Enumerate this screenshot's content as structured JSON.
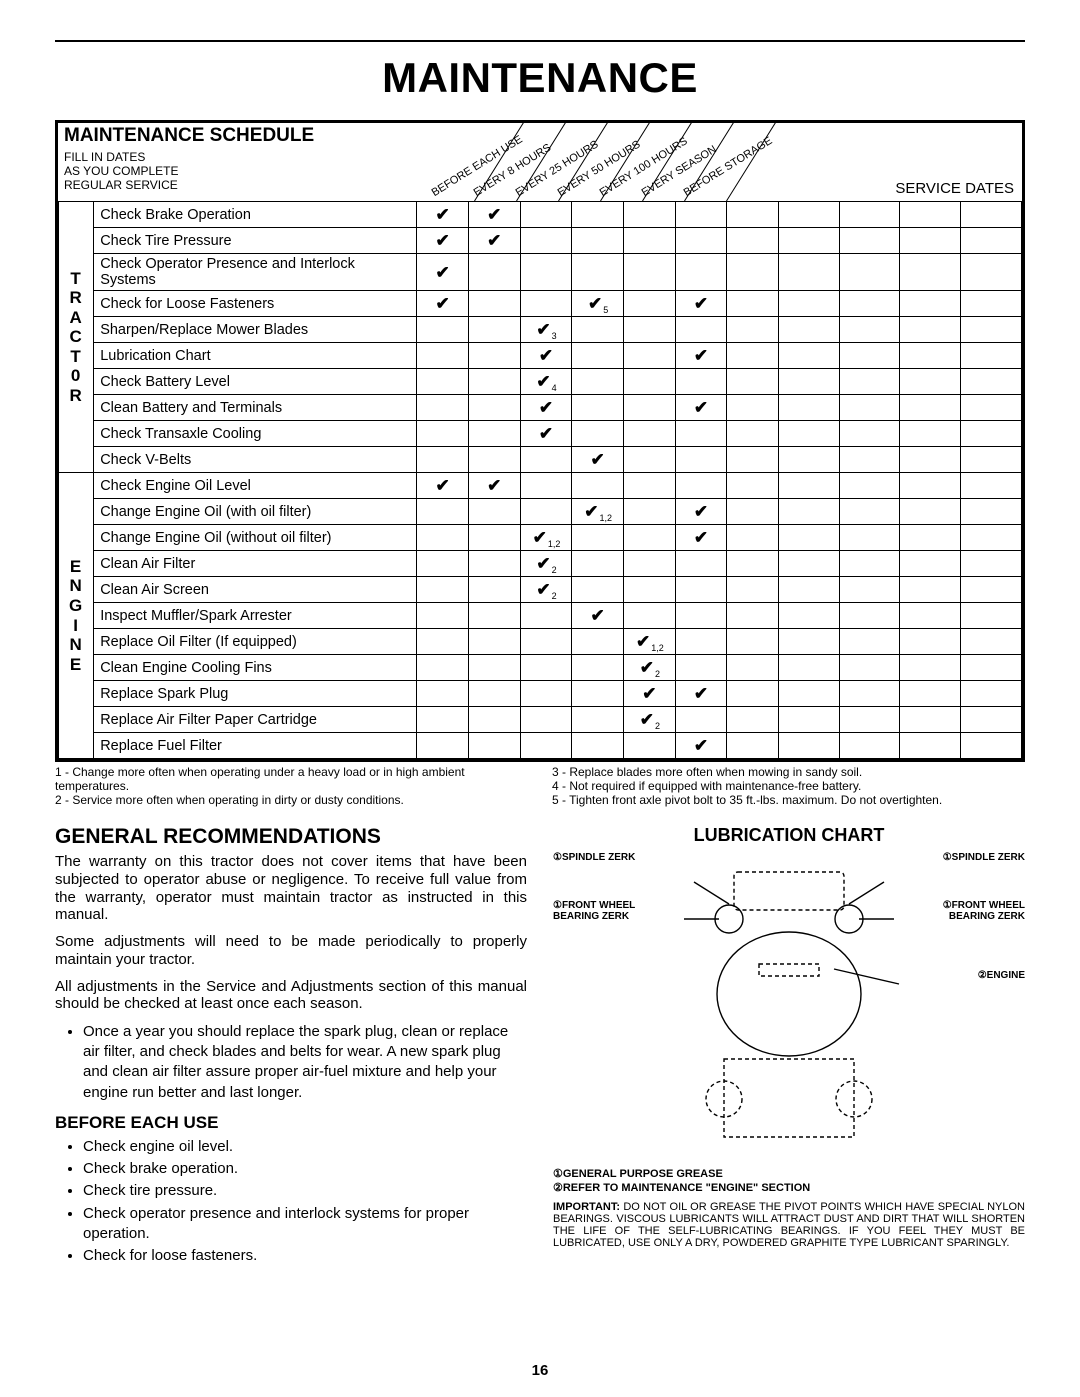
{
  "page_title": "MAINTENANCE",
  "schedule": {
    "heading": "MAINTENANCE SCHEDULE",
    "sub_lines": [
      "FILL IN DATES",
      "AS YOU COMPLETE",
      "REGULAR SERVICE"
    ],
    "col_headers": [
      "BEFORE EACH USE",
      "EVERY 8 HOURS",
      "EVERY 25 HOURS",
      "EVERY 50 HOURS",
      "EVERY 100 HOURS",
      "EVERY SEASON",
      "BEFORE STORAGE"
    ],
    "service_dates_label": "SERVICE DATES",
    "groups": [
      {
        "label": "T\nR\nA\nC\nT\n0\nR",
        "rows": [
          {
            "task": "Check Brake Operation",
            "marks": {
              "0": "",
              "1": ""
            }
          },
          {
            "task": "Check Tire Pressure",
            "marks": {
              "0": "",
              "1": ""
            }
          },
          {
            "task": "Check Operator Presence and Interlock Systems",
            "marks": {
              "0": ""
            }
          },
          {
            "task": "Check for Loose Fasteners",
            "marks": {
              "0": "",
              "3": "5",
              "5": ""
            }
          },
          {
            "task": "Sharpen/Replace Mower Blades",
            "marks": {
              "2": "3"
            }
          },
          {
            "task": "Lubrication Chart",
            "marks": {
              "2": "",
              "5": ""
            }
          },
          {
            "task": "Check Battery Level",
            "marks": {
              "2": "4"
            }
          },
          {
            "task": "Clean Battery and Terminals",
            "marks": {
              "2": "",
              "5": ""
            }
          },
          {
            "task": "Check Transaxle Cooling",
            "marks": {
              "2": ""
            }
          },
          {
            "task": "Check V-Belts",
            "marks": {
              "3": ""
            }
          }
        ]
      },
      {
        "label": "E\nN\nG\nI\nN\nE",
        "rows": [
          {
            "task": "Check Engine Oil Level",
            "marks": {
              "0": "",
              "1": ""
            }
          },
          {
            "task": "Change Engine Oil (with oil filter)",
            "marks": {
              "3": "1,2",
              "5": ""
            }
          },
          {
            "task": "Change Engine Oil (without oil filter)",
            "marks": {
              "2": "1,2",
              "5": ""
            }
          },
          {
            "task": "Clean Air Filter",
            "marks": {
              "2": "2"
            }
          },
          {
            "task": "Clean Air Screen",
            "marks": {
              "2": "2"
            }
          },
          {
            "task": "Inspect Muffler/Spark Arrester",
            "marks": {
              "3": ""
            }
          },
          {
            "task": "Replace Oil Filter (If equipped)",
            "marks": {
              "4": "1,2"
            }
          },
          {
            "task": "Clean Engine Cooling Fins",
            "marks": {
              "4": "2"
            }
          },
          {
            "task": "Replace Spark Plug",
            "marks": {
              "4": "",
              "5": ""
            }
          },
          {
            "task": "Replace Air Filter Paper Cartridge",
            "marks": {
              "4": "2"
            }
          },
          {
            "task": "Replace Fuel Filter",
            "marks": {
              "5": ""
            }
          }
        ]
      }
    ],
    "footnotes_left": [
      "1 - Change more often when operating under a heavy load or in high ambient temperatures.",
      "2 - Service more often when operating in dirty or dusty conditions."
    ],
    "footnotes_right": [
      "3 - Replace blades more often when mowing in sandy soil.",
      "4 - Not required if equipped with maintenance-free battery.",
      "5 - Tighten front axle pivot bolt to 35 ft.-lbs. maximum. Do not overtighten."
    ]
  },
  "gen_rec": {
    "heading": "GENERAL RECOMMENDATIONS",
    "p1": "The warranty on this tractor does not cover items that have been subjected to operator abuse or negligence. To receive full value from the warranty, operator must maintain tractor as instructed in this manual.",
    "p2": "Some adjustments will need to be made periodically to properly maintain your tractor.",
    "p3": "All adjustments in the Service and Adjustments section of this manual should be checked at least once each season.",
    "bullet": "Once a year you should replace the spark plug, clean or replace air filter, and check blades and belts for wear. A new spark plug and clean air filter assure proper air-fuel mixture and help your engine run better and last longer."
  },
  "before_each": {
    "heading": "BEFORE EACH USE",
    "items": [
      "Check engine oil level.",
      "Check brake operation.",
      "Check tire pressure.",
      "Check operator presence and interlock systems for proper operation.",
      "Check for loose fasteners."
    ]
  },
  "lube": {
    "heading": "LUBRICATION CHART",
    "labels": {
      "spindle_l": "①SPINDLE ZERK",
      "spindle_r": "①SPINDLE ZERK",
      "fwb_l": "①FRONT WHEEL BEARING ZERK",
      "fwb_r": "①FRONT WHEEL BEARING ZERK",
      "engine": "②ENGINE"
    },
    "legend1": "①GENERAL PURPOSE GREASE",
    "legend2": "②REFER TO MAINTENANCE \"ENGINE\" SECTION",
    "important": "IMPORTANT: DO NOT OIL OR GREASE THE PIVOT POINTS WHICH HAVE SPECIAL NYLON BEARINGS. VISCOUS LUBRICANTS WILL ATTRACT DUST AND DIRT THAT WILL SHORTEN THE LIFE OF THE SELF-LUBRICATING BEARINGS. IF YOU FEEL THEY MUST BE LUBRICATED, USE ONLY A DRY, POWDERED GRAPHITE TYPE LUBRICANT SPARINGLY."
  },
  "page_number": "16",
  "layout": {
    "chk_col_w": 40,
    "task_col_w": 250,
    "cat_col_w": 24,
    "diag_positions": [
      8,
      50,
      92,
      134,
      176,
      218,
      260
    ]
  }
}
